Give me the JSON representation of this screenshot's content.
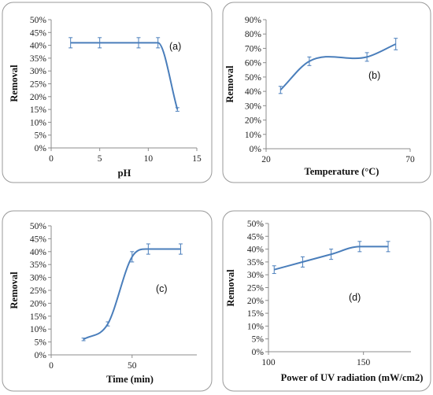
{
  "colors": {
    "series": "#4a7ebb",
    "frame": "#9a9a9a",
    "axis": "#8c8c8c"
  },
  "chart_data": [
    {
      "type": "line",
      "panel_label": "(a)",
      "xlabel": "pH",
      "ylabel": "Removal",
      "xlim": [
        0,
        15
      ],
      "ylim": [
        0,
        50
      ],
      "x_ticks": [
        0,
        5,
        10,
        15
      ],
      "x_tick_labels": [
        "0",
        "5",
        "10",
        "15"
      ],
      "y_ticks": [
        0,
        5,
        10,
        15,
        20,
        25,
        30,
        35,
        40,
        45,
        50
      ],
      "y_tick_labels": [
        "0%",
        "5%",
        "10%",
        "15%",
        "20%",
        "25%",
        "30%",
        "35%",
        "40%",
        "45%",
        "50%"
      ],
      "x": [
        2,
        5,
        9,
        11,
        13
      ],
      "y": [
        41,
        41,
        41,
        41,
        15
      ],
      "error": [
        2,
        2,
        2,
        2,
        0.7
      ],
      "smoothed": true,
      "grid": false
    },
    {
      "type": "line",
      "panel_label": "(b)",
      "xlabel": "Temperature (°C)",
      "ylabel": "Removal",
      "xlim": [
        20,
        70
      ],
      "ylim": [
        0,
        90
      ],
      "x_ticks": [
        20,
        70
      ],
      "x_tick_labels": [
        "20",
        "70"
      ],
      "y_ticks": [
        0,
        10,
        20,
        30,
        40,
        50,
        60,
        70,
        80,
        90
      ],
      "y_tick_labels": [
        "0%",
        "10%",
        "20%",
        "30%",
        "40%",
        "50%",
        "60%",
        "70%",
        "80%",
        "90%"
      ],
      "x": [
        25,
        35,
        55,
        65
      ],
      "y": [
        41,
        61,
        64,
        73
      ],
      "error": [
        2.5,
        3,
        3,
        4
      ],
      "smoothed": true,
      "grid": false
    },
    {
      "type": "line",
      "panel_label": "(c)",
      "xlabel": "Time (min)",
      "ylabel": "Removal",
      "xlim": [
        0,
        90
      ],
      "ylim": [
        0,
        50
      ],
      "x_ticks": [
        0,
        50
      ],
      "x_tick_labels": [
        "0",
        "50"
      ],
      "y_ticks": [
        0,
        5,
        10,
        15,
        20,
        25,
        30,
        35,
        40,
        45,
        50
      ],
      "y_tick_labels": [
        "0%",
        "5%",
        "10%",
        "15%",
        "20%",
        "25%",
        "30%",
        "35%",
        "40%",
        "45%",
        "50%"
      ],
      "x": [
        20,
        35,
        50,
        60,
        80
      ],
      "y": [
        6,
        12,
        38,
        41,
        41
      ],
      "error": [
        0.5,
        0.8,
        2,
        2,
        2
      ],
      "smoothed": true,
      "grid": false
    },
    {
      "type": "line",
      "panel_label": "(d)",
      "xlabel": "Power of UV radiation (mW/cm2)",
      "ylabel": "Removal",
      "xlim": [
        100,
        175
      ],
      "ylim": [
        0,
        50
      ],
      "x_ticks": [
        100,
        150
      ],
      "x_tick_labels": [
        "100",
        "150"
      ],
      "y_ticks": [
        0,
        5,
        10,
        15,
        20,
        25,
        30,
        35,
        40,
        45,
        50
      ],
      "y_tick_labels": [
        "0%",
        "5%",
        "10%",
        "15%",
        "20%",
        "25%",
        "30%",
        "35%",
        "40%",
        "45%",
        "50%"
      ],
      "x": [
        103,
        118,
        133,
        148,
        163
      ],
      "y": [
        32,
        35,
        38,
        41,
        41
      ],
      "error": [
        1.5,
        2,
        2,
        2,
        2
      ],
      "smoothed": true,
      "grid": false
    }
  ]
}
